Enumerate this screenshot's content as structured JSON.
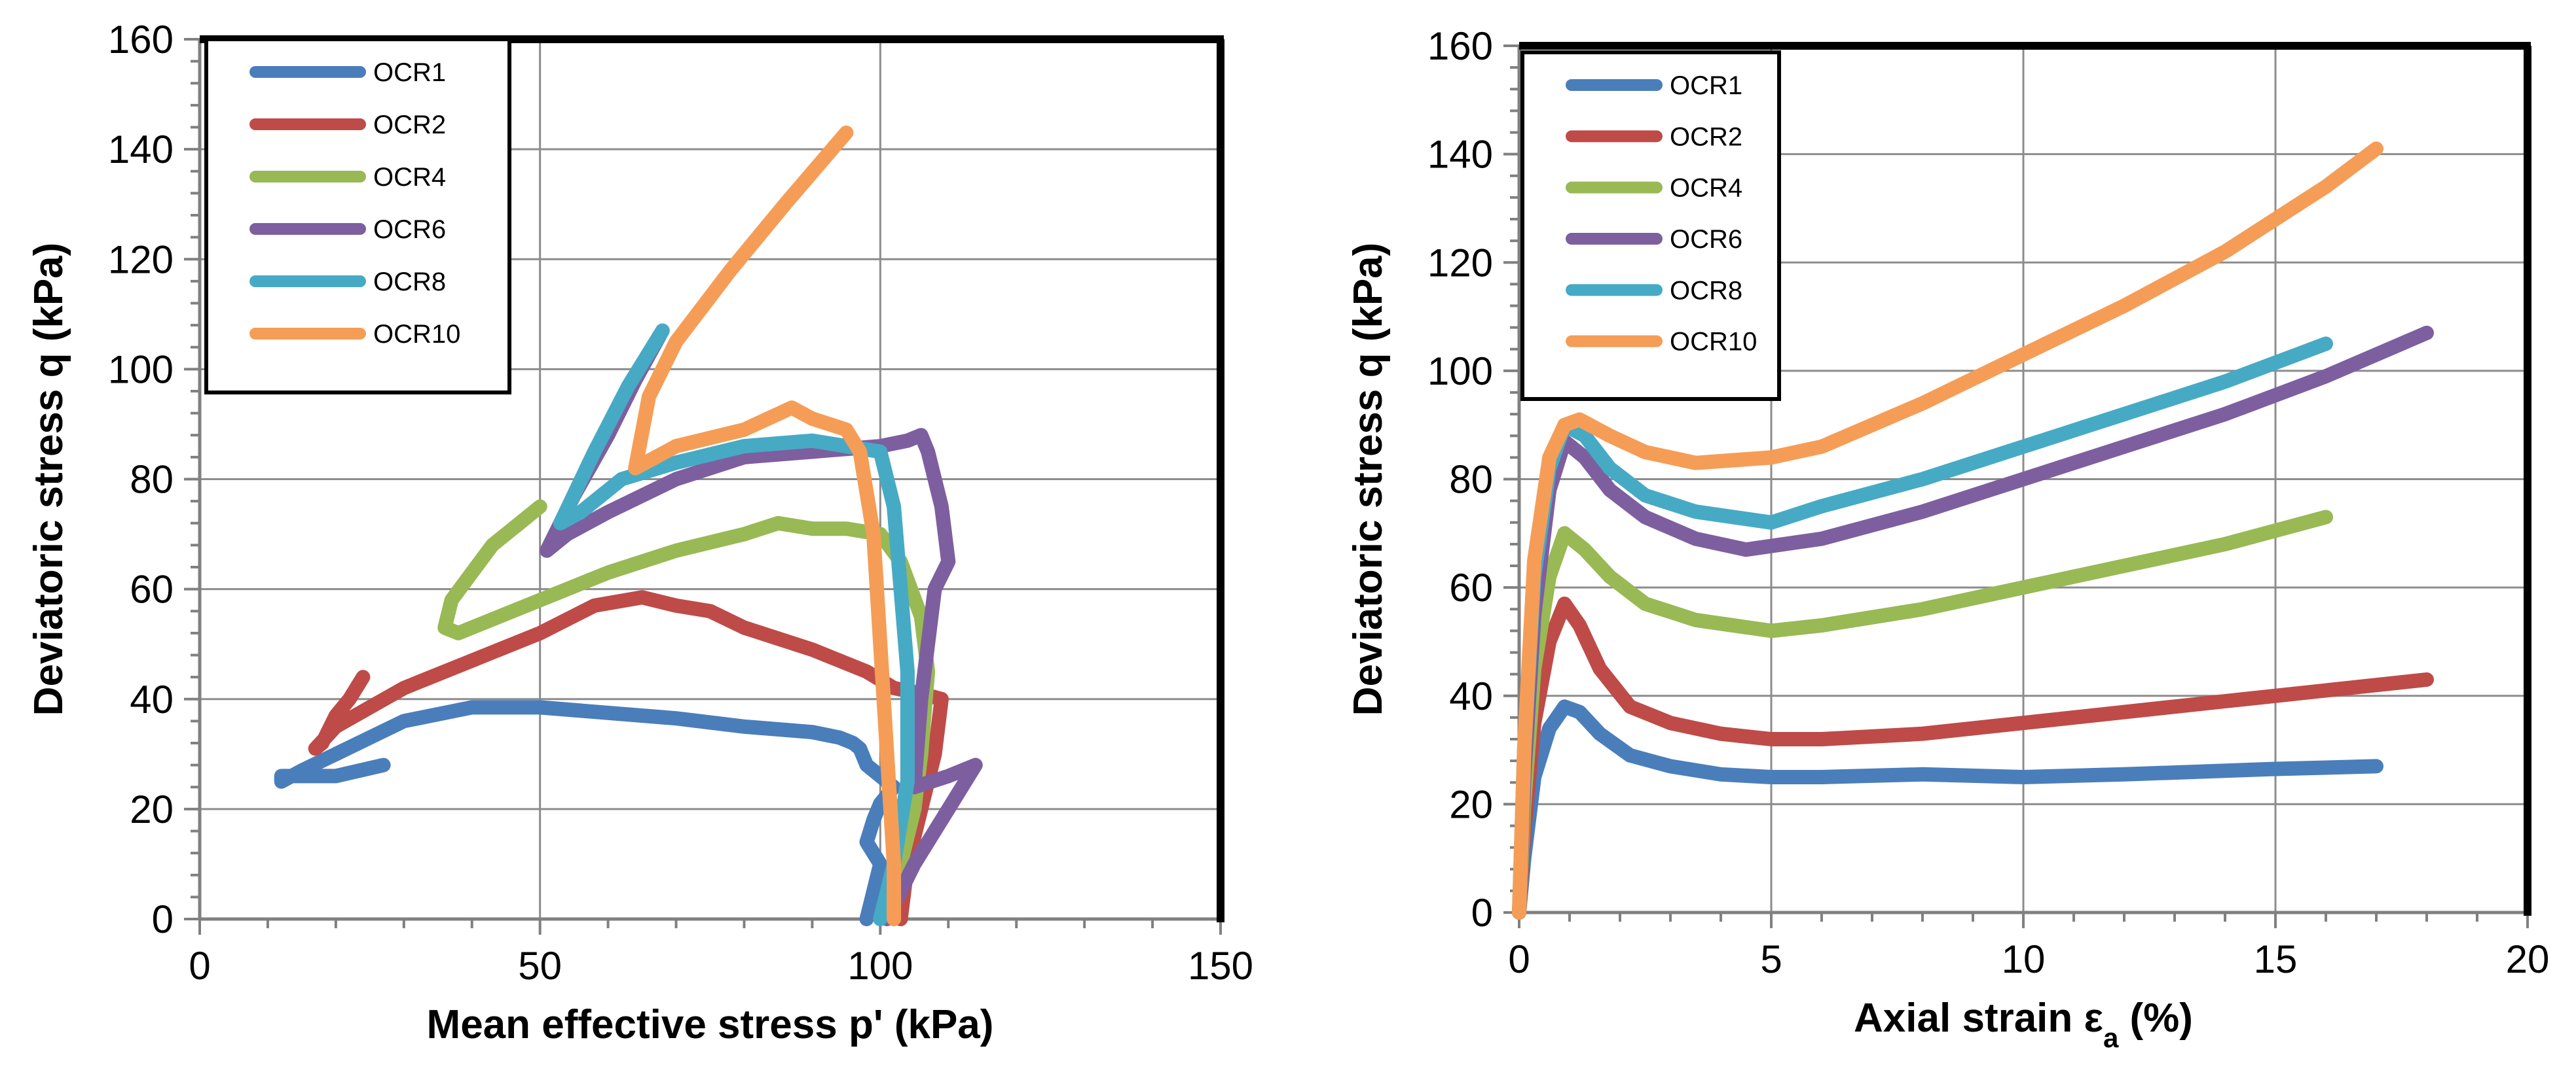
{
  "chart_data": [
    {
      "type": "line",
      "xlabel": "Mean effective stress p' (kPa)",
      "ylabel": "Deviatoric stress q (kPa)",
      "xlim": [
        0,
        150
      ],
      "ylim": [
        0,
        160
      ],
      "xticks": [
        0,
        50,
        100,
        150
      ],
      "yticks": [
        0,
        20,
        40,
        60,
        80,
        100,
        120,
        140,
        160
      ],
      "grid": true,
      "legend_position": "top-left",
      "series": [
        {
          "name": "OCR1",
          "color": "#4a7ebb",
          "x": [
            98,
            99,
            100,
            98,
            99,
            100,
            102,
            98,
            97,
            96,
            94,
            90,
            80,
            70,
            60,
            50,
            40,
            30,
            20,
            15,
            12,
            12,
            20,
            27
          ],
          "y": [
            0,
            5,
            10,
            14,
            18,
            21,
            24,
            28,
            31,
            32,
            33,
            34,
            35,
            36.5,
            37.5,
            38.5,
            38.5,
            36,
            30,
            27,
            25,
            26,
            26,
            28
          ]
        },
        {
          "name": "OCR2",
          "color": "#be4b48",
          "x": [
            103,
            104,
            106,
            108,
            109,
            106,
            102,
            98,
            90,
            80,
            75,
            70,
            65,
            58,
            50,
            40,
            30,
            20,
            17,
            18,
            20,
            22,
            24
          ],
          "y": [
            0,
            10,
            20,
            30,
            40,
            41,
            42,
            45,
            49,
            53,
            56,
            57,
            58.5,
            57,
            52,
            47,
            42,
            35,
            31,
            32,
            37,
            40,
            44
          ]
        },
        {
          "name": "OCR4",
          "color": "#98b954",
          "x": [
            101,
            103,
            105,
            106,
            107,
            106,
            103,
            100,
            95,
            90,
            85,
            80,
            70,
            60,
            50,
            42,
            38,
            36,
            37,
            40,
            43,
            47,
            50
          ],
          "y": [
            2,
            10,
            20,
            30,
            45,
            55,
            65,
            70,
            71,
            71,
            72,
            70,
            67,
            63,
            58,
            54,
            52,
            53,
            58,
            63,
            68,
            72,
            75
          ]
        },
        {
          "name": "OCR6",
          "color": "#7d5fa0",
          "x": [
            101,
            105,
            110,
            114,
            110,
            105,
            106,
            108,
            110,
            109,
            107,
            106,
            104,
            100,
            90,
            80,
            70,
            60,
            54,
            51,
            55,
            60,
            64,
            68
          ],
          "y": [
            0,
            10,
            20,
            28,
            26,
            24,
            40,
            60,
            65,
            75,
            85,
            88,
            87,
            86,
            85,
            84,
            80,
            74,
            70,
            67,
            77,
            88,
            98,
            107
          ]
        },
        {
          "name": "OCR8",
          "color": "#46aac5",
          "x": [
            100,
            102,
            104,
            104,
            103,
            102,
            100,
            95,
            90,
            80,
            70,
            62,
            56,
            53,
            58,
            63,
            68
          ],
          "y": [
            0,
            10,
            25,
            45,
            60,
            75,
            85,
            86,
            87,
            86,
            83,
            80,
            74,
            72,
            85,
            97,
            107
          ]
        },
        {
          "name": "OCR10",
          "color": "#f59d56",
          "x": [
            102,
            102,
            101,
            100,
            99,
            97,
            95,
            90,
            87,
            80,
            70,
            64,
            66,
            70,
            78,
            86,
            95
          ],
          "y": [
            0,
            10,
            30,
            50,
            70,
            85,
            89,
            91,
            93,
            89,
            86,
            82,
            95,
            105,
            118,
            130,
            143
          ]
        }
      ]
    },
    {
      "type": "line",
      "xlabel": "Axial strain εa (%)",
      "ylabel": "Deviatoric stress q (kPa)",
      "xlim": [
        0,
        20
      ],
      "ylim": [
        0,
        160
      ],
      "xticks": [
        0,
        5,
        10,
        15,
        20
      ],
      "yticks": [
        0,
        20,
        40,
        60,
        80,
        100,
        120,
        140,
        160
      ],
      "grid": true,
      "legend_position": "top-left",
      "series": [
        {
          "name": "OCR1",
          "color": "#4a7ebb",
          "x": [
            0,
            0.1,
            0.3,
            0.6,
            0.9,
            1.2,
            1.6,
            2.2,
            3,
            4,
            5,
            6,
            8,
            10,
            12,
            15,
            17
          ],
          "y": [
            0,
            10,
            25,
            34,
            38,
            37,
            33,
            29,
            27,
            25.5,
            25,
            25,
            25.5,
            25,
            25.5,
            26.5,
            27
          ]
        },
        {
          "name": "OCR2",
          "color": "#be4b48",
          "x": [
            0,
            0.1,
            0.3,
            0.6,
            0.9,
            1.2,
            1.6,
            2.2,
            3,
            4,
            5,
            6,
            8,
            10,
            12,
            14,
            16,
            18
          ],
          "y": [
            0,
            15,
            35,
            50,
            57,
            53,
            45,
            38,
            35,
            33,
            32,
            32,
            33,
            35,
            37,
            39,
            41,
            43
          ]
        },
        {
          "name": "OCR4",
          "color": "#98b954",
          "x": [
            0,
            0.1,
            0.3,
            0.6,
            0.9,
            1.3,
            1.8,
            2.5,
            3.5,
            5,
            6,
            8,
            10,
            12,
            14,
            16
          ],
          "y": [
            0,
            20,
            45,
            62,
            70,
            67,
            62,
            57,
            54,
            52,
            53,
            56,
            60,
            64,
            68,
            73
          ]
        },
        {
          "name": "OCR6",
          "color": "#7d5fa0",
          "x": [
            0,
            0.1,
            0.3,
            0.6,
            0.9,
            1.3,
            1.8,
            2.5,
            3.5,
            4.5,
            6,
            8,
            10,
            12,
            14,
            16,
            18
          ],
          "y": [
            0,
            25,
            55,
            78,
            87,
            84,
            78,
            73,
            69,
            67,
            69,
            74,
            80,
            86,
            92,
            99,
            107
          ]
        },
        {
          "name": "OCR8",
          "color": "#46aac5",
          "x": [
            0,
            0.1,
            0.3,
            0.6,
            0.9,
            1.3,
            1.8,
            2.5,
            3.5,
            5,
            6,
            8,
            10,
            12,
            14,
            16
          ],
          "y": [
            0,
            30,
            62,
            82,
            90,
            88,
            82,
            77,
            74,
            72,
            75,
            80,
            86,
            92,
            98,
            105
          ]
        },
        {
          "name": "OCR10",
          "color": "#f59d56",
          "x": [
            0,
            0.1,
            0.3,
            0.6,
            0.9,
            1.2,
            1.8,
            2.5,
            3.5,
            5,
            6,
            8,
            10,
            12,
            14,
            16,
            17
          ],
          "y": [
            0,
            30,
            65,
            84,
            90,
            91,
            88,
            85,
            83,
            84,
            86,
            94,
            103,
            112,
            122,
            134,
            141
          ]
        }
      ]
    }
  ]
}
